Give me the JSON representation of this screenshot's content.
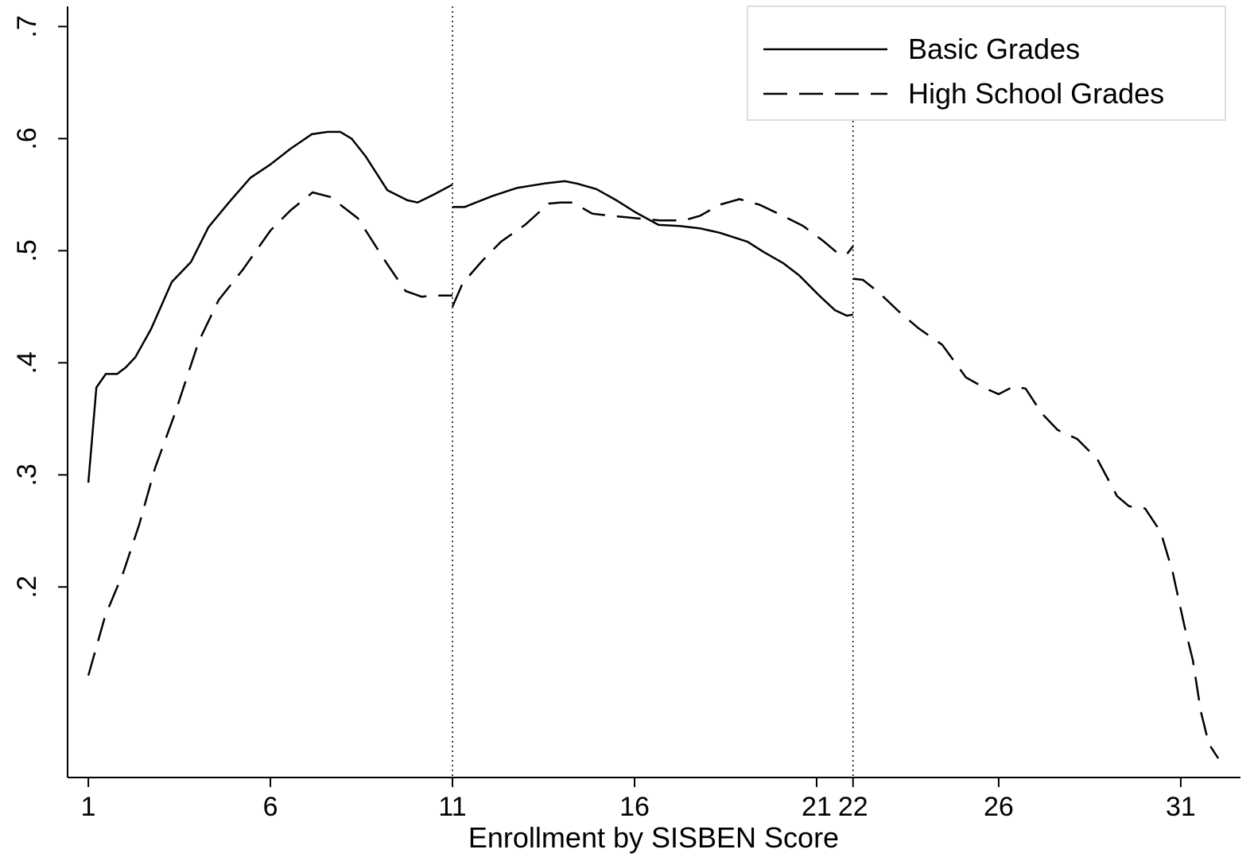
{
  "chart_data": {
    "type": "line",
    "xlabel": "Enrollment by SISBEN Score",
    "xlim": [
      0.43,
      32.64
    ],
    "xticks": [
      1,
      6,
      11,
      16,
      21,
      22,
      26,
      31
    ],
    "ylim": [
      0.03,
      0.718
    ],
    "yticks": [
      {
        "value": 0.2,
        "label": ".2"
      },
      {
        "value": 0.3,
        "label": ".3"
      },
      {
        "value": 0.4,
        "label": ".4"
      },
      {
        "value": 0.5,
        "label": ".5"
      },
      {
        "value": 0.6,
        "label": ".6"
      },
      {
        "value": 0.7,
        "label": ".7"
      }
    ],
    "vlines": [
      11,
      22
    ],
    "legend": "top-right",
    "series": [
      {
        "name": "Basic Grades",
        "color": "#000000",
        "linestyle": "solid",
        "x": [
          1,
          1.22,
          1.48,
          1.79,
          2.03,
          2.29,
          2.72,
          3.29,
          3.82,
          4.3,
          4.91,
          5.45,
          6.0,
          6.55,
          7.14,
          7.57,
          7.92,
          8.23,
          8.62,
          9.21,
          9.76,
          10.04,
          10.48,
          11,
          11,
          11,
          11.33,
          12.11,
          12.77,
          13.53,
          14.08,
          14.41,
          14.95,
          15.5,
          16.04,
          16.66,
          17.24,
          17.79,
          18.34,
          19.1,
          19.54,
          20.08,
          20.52,
          21.07,
          21.5,
          21.83,
          22
        ],
        "values": [
          0.293,
          0.378,
          0.39,
          0.39,
          0.396,
          0.405,
          0.43,
          0.472,
          0.49,
          0.521,
          0.545,
          0.565,
          0.577,
          0.591,
          0.604,
          0.606,
          0.606,
          0.6,
          0.584,
          0.554,
          0.545,
          0.543,
          0.55,
          0.559,
          null,
          0.539,
          0.539,
          0.549,
          0.556,
          0.56,
          0.562,
          0.56,
          0.555,
          0.545,
          0.534,
          0.523,
          0.522,
          0.52,
          0.516,
          0.508,
          0.499,
          0.489,
          0.478,
          0.46,
          0.447,
          0.442,
          0.443
        ]
      },
      {
        "name": "High School Grades",
        "color": "#000000",
        "linestyle": "dashed",
        "x": [
          1,
          1.46,
          1.96,
          2.4,
          2.83,
          3.38,
          4.03,
          4.58,
          5.24,
          6.0,
          6.55,
          7.16,
          7.64,
          8.4,
          9.17,
          9.71,
          10.15,
          10.48,
          11,
          11,
          11,
          11.28,
          11.79,
          12.33,
          12.99,
          13.64,
          13.97,
          14.3,
          14.84,
          15.39,
          16.04,
          16.7,
          17.35,
          17.79,
          18.34,
          18.88,
          19.43,
          20.08,
          20.63,
          21.17,
          21.61,
          21.83,
          22,
          22,
          22,
          22.27,
          22.7,
          23.25,
          23.79,
          24.45,
          25.1,
          25.65,
          26.0,
          26.41,
          26.74,
          27.18,
          27.62,
          28.16,
          28.71,
          29.25,
          29.58,
          30.02,
          30.45,
          30.78,
          31.11,
          31.33,
          31.55,
          31.77,
          32.03
        ],
        "values": [
          0.121,
          0.174,
          0.213,
          0.256,
          0.306,
          0.355,
          0.419,
          0.456,
          0.483,
          0.518,
          0.536,
          0.552,
          0.548,
          0.529,
          0.49,
          0.464,
          0.459,
          0.46,
          0.46,
          null,
          0.45,
          0.471,
          0.49,
          0.508,
          0.523,
          0.542,
          0.543,
          0.543,
          0.533,
          0.531,
          0.529,
          0.527,
          0.527,
          0.531,
          0.541,
          0.546,
          0.541,
          0.531,
          0.522,
          0.509,
          0.497,
          0.497,
          0.504,
          null,
          0.475,
          0.474,
          0.463,
          0.446,
          0.431,
          0.416,
          0.387,
          0.377,
          0.372,
          0.379,
          0.377,
          0.355,
          0.34,
          0.332,
          0.314,
          0.281,
          0.272,
          0.27,
          0.249,
          0.213,
          0.164,
          0.135,
          0.089,
          0.06,
          0.047
        ]
      }
    ]
  }
}
